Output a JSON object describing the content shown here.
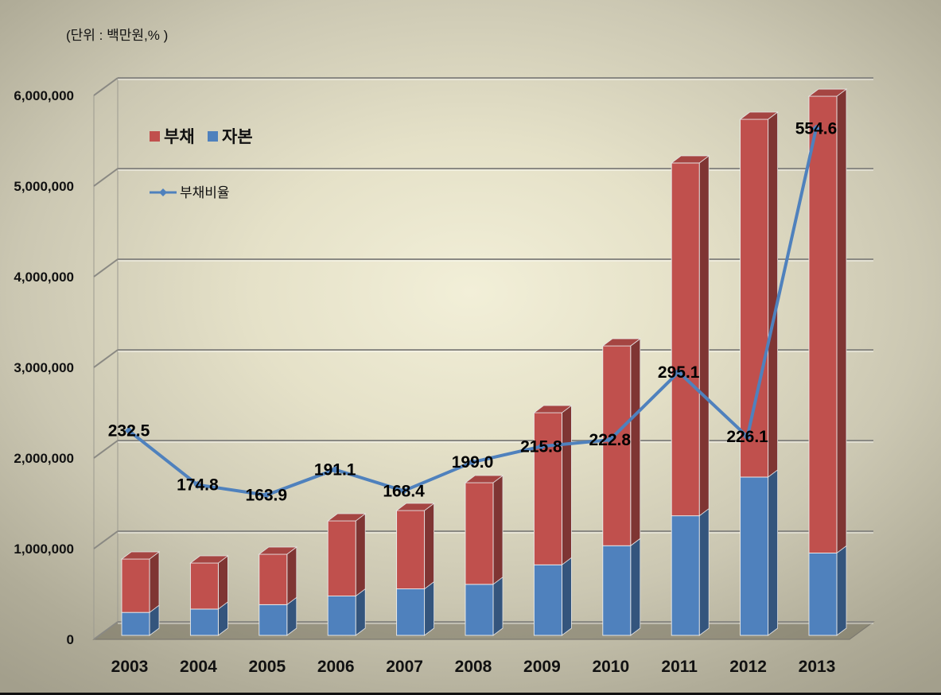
{
  "unit_note": "(단위 : 백만원,% )",
  "chart_data": {
    "type": "bar",
    "stacked": true,
    "three_d": true,
    "categories": [
      "2003",
      "2004",
      "2005",
      "2006",
      "2007",
      "2008",
      "2009",
      "2010",
      "2011",
      "2012",
      "2013"
    ],
    "series": [
      {
        "name": "부채",
        "color": "#c0504d",
        "values": [
          589000,
          508000,
          556000,
          829000,
          864000,
          1121000,
          1678000,
          2204000,
          3892000,
          3947000,
          5039000
        ]
      },
      {
        "name": "자본",
        "color": "#4f81bd",
        "values": [
          253000,
          290000,
          339000,
          434000,
          513000,
          563000,
          778000,
          989000,
          1319000,
          1746000,
          908000
        ]
      }
    ],
    "line_series": {
      "name": "부채비율",
      "type": "line",
      "color": "#4f81bd",
      "values": [
        232.5,
        174.8,
        163.9,
        191.1,
        168.4,
        199.0,
        215.8,
        222.8,
        295.1,
        226.1,
        554.6
      ],
      "labels": [
        "232.5",
        "174.8",
        "163.9",
        "191.1",
        "168.4",
        "199.0",
        "215.8",
        "222.8",
        "295.1",
        "226.1",
        "554.6"
      ]
    },
    "ylim": [
      0,
      6000000
    ],
    "y_tick_labels": [
      "0",
      "1,000,000",
      "2,000,000",
      "3,000,000",
      "4,000,000",
      "5,000,000",
      "6,000,000"
    ],
    "y2lim": [
      0,
      600
    ],
    "grid": true,
    "legend_placement": "top-left"
  }
}
